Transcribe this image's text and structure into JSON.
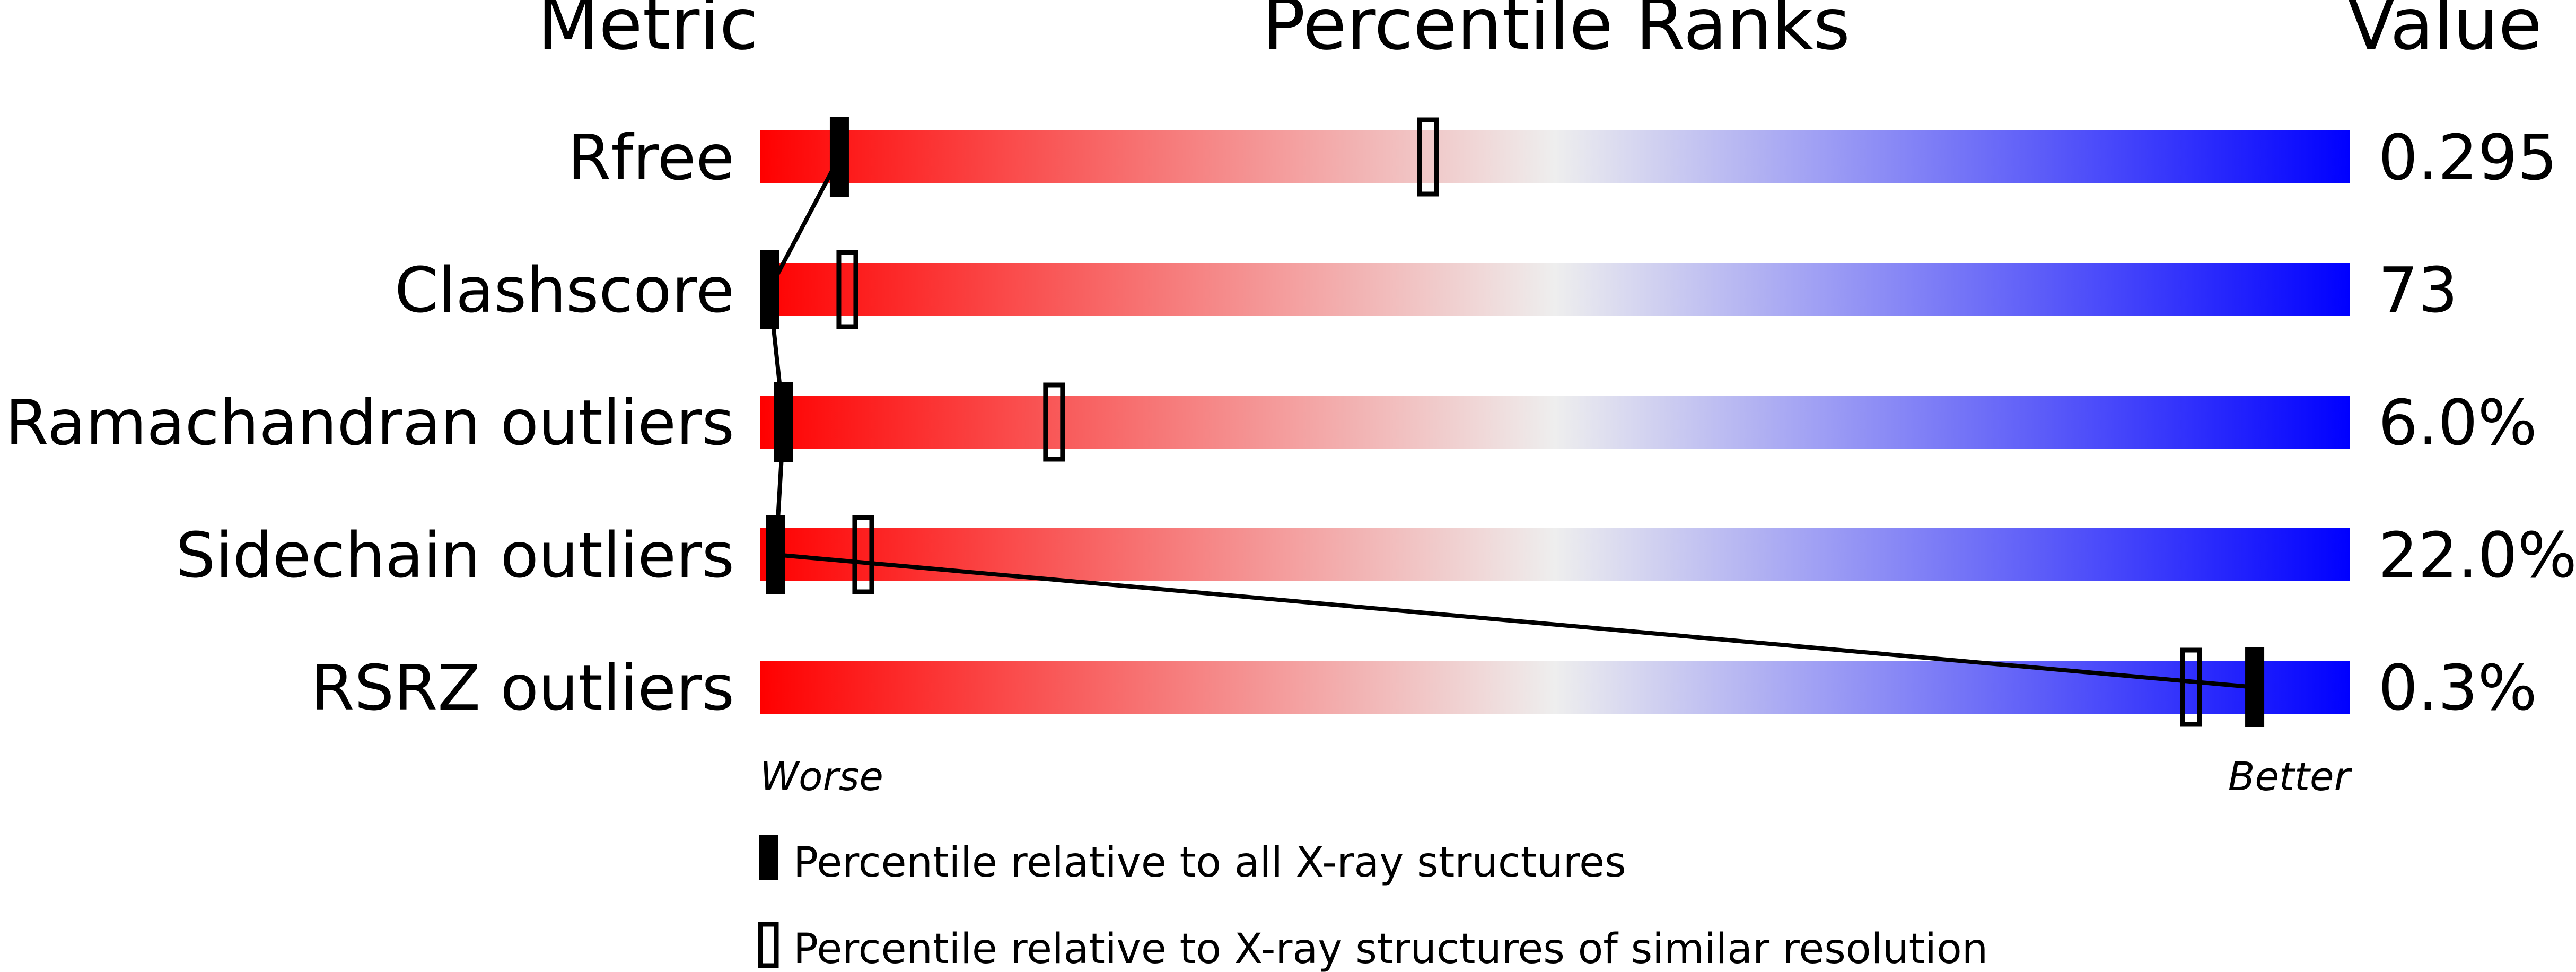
{
  "chart_data": {
    "type": "bar",
    "headers": {
      "metric": "Metric",
      "ranks": "Percentile Ranks",
      "value": "Value"
    },
    "axis": {
      "worse": "Worse",
      "better": "Better",
      "range": [
        0,
        100
      ]
    },
    "rows": [
      {
        "metric": "Rfree",
        "value": "0.295",
        "all_percentile": 5,
        "similar_percentile": 42
      },
      {
        "metric": "Clashscore",
        "value": "73",
        "all_percentile": 0.5,
        "similar_percentile": 5.5
      },
      {
        "metric": "Ramachandran outliers",
        "value": "6.0%",
        "all_percentile": 1.5,
        "similar_percentile": 18.5
      },
      {
        "metric": "Sidechain outliers",
        "value": "22.0%",
        "all_percentile": 1,
        "similar_percentile": 6.5
      },
      {
        "metric": "RSRZ outliers",
        "value": "0.3%",
        "all_percentile": 94,
        "similar_percentile": 90
      }
    ],
    "legend": [
      {
        "kind": "filled",
        "label": "Percentile relative to all X-ray structures"
      },
      {
        "kind": "open",
        "label": "Percentile relative to X-ray structures of similar resolution"
      }
    ],
    "colors": {
      "worse": "#ff0000",
      "middle": "#eeeeee",
      "better": "#0000ff",
      "marker": "#000000"
    }
  }
}
